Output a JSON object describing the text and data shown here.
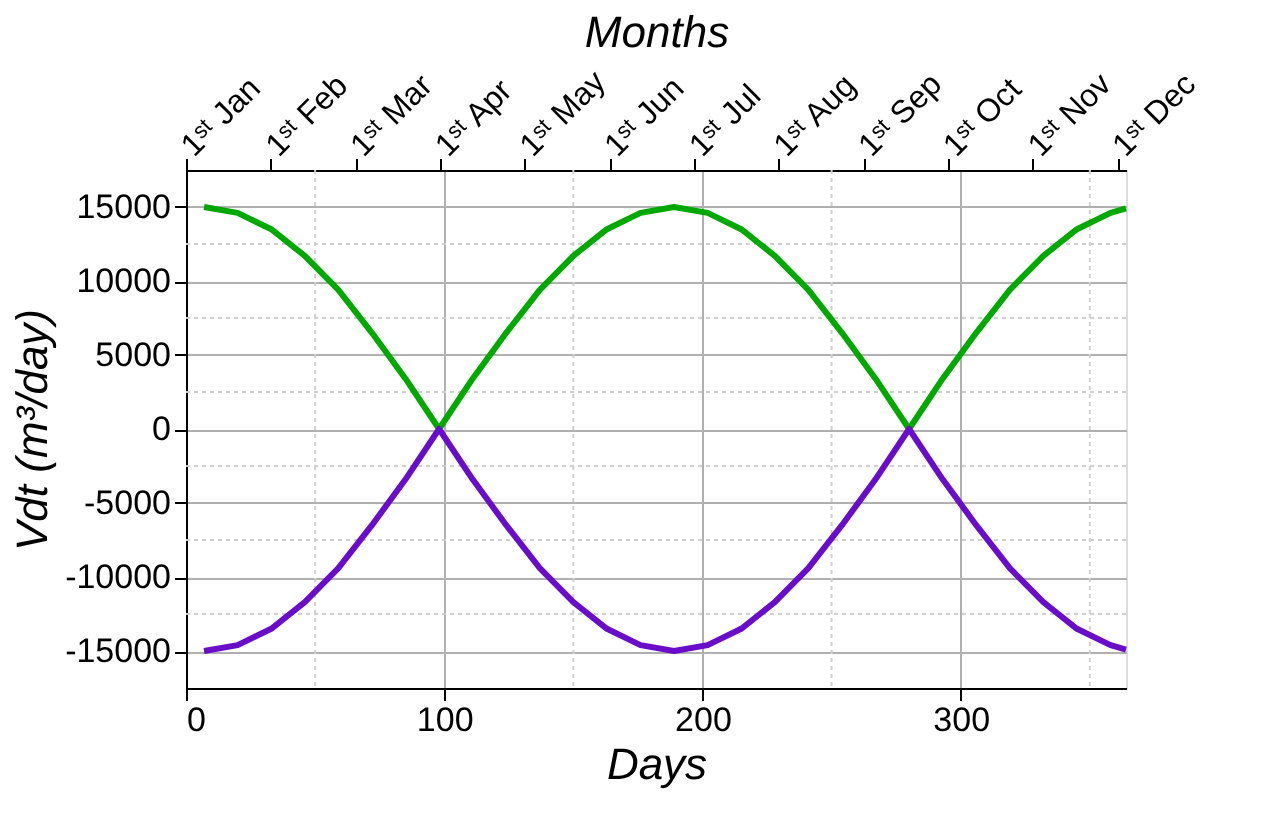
{
  "chart_data": {
    "type": "line",
    "xlabel": "Days",
    "ylabel": "Vdt (m³/day)",
    "x2label": "Months",
    "x": [
      7,
      20,
      33,
      46,
      59,
      72,
      85,
      98,
      111,
      124,
      137,
      150,
      163,
      176,
      189,
      202,
      215,
      228,
      241,
      254,
      267,
      280,
      293,
      306,
      319,
      332,
      345,
      358,
      364
    ],
    "series": [
      {
        "color": "#00a800",
        "values": [
          15000,
          14600,
          13500,
          11700,
          9400,
          6500,
          3400,
          0,
          3400,
          6500,
          9400,
          11700,
          13500,
          14600,
          15000,
          14600,
          13500,
          11700,
          9400,
          6500,
          3400,
          0,
          3400,
          6500,
          9400,
          11700,
          13500,
          14600,
          14900
        ]
      },
      {
        "color": "#6a0dc8",
        "values": [
          -15000,
          -14600,
          -13500,
          -11700,
          -9400,
          -6500,
          -3400,
          0,
          -3400,
          -6500,
          -9400,
          -11700,
          -13500,
          -14600,
          -15000,
          -14600,
          -13500,
          -11700,
          -9400,
          -6500,
          -3400,
          0,
          -3400,
          -6500,
          -9400,
          -11700,
          -13500,
          -14600,
          -14900
        ]
      }
    ],
    "xlim": [
      0,
      364
    ],
    "xticks": [
      0,
      100,
      200,
      300
    ],
    "ylim": [
      -17500,
      17500
    ],
    "yticks": [
      -15000,
      -10000,
      -5000,
      0,
      5000,
      10000,
      15000
    ],
    "annotations": [
      "1ˢᵗ Jan",
      "1ˢᵗ Feb",
      "1ˢᵗ Mar",
      "1ˢᵗ Apr",
      "1ˢᵗ May",
      "1ˢᵗ Jun",
      "1ˢᵗ Jul",
      "1ˢᵗ Aug",
      "1ˢᵗ Sep",
      "1ˢᵗ Oct",
      "1ˢᵗ Nov",
      "1ˢᵗ Dec"
    ],
    "grid": true,
    "marker": "none",
    "line_style": "solid"
  }
}
